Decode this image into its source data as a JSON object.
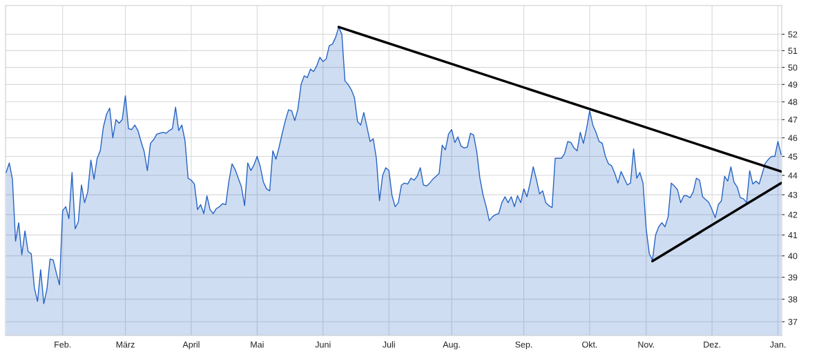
{
  "chart_data": {
    "type": "area",
    "log": "y",
    "grid": true,
    "ylim": [
      36.4,
      53.8
    ],
    "yticks": [
      37,
      38,
      39,
      40,
      41,
      42,
      43,
      44,
      45,
      46,
      47,
      48,
      49,
      50,
      51,
      52
    ],
    "categories": [
      null,
      null,
      null,
      null,
      null,
      null,
      null,
      null,
      null,
      null,
      null,
      null,
      null,
      null,
      null,
      null,
      null,
      null,
      "Feb.",
      null,
      null,
      null,
      null,
      null,
      null,
      null,
      null,
      null,
      null,
      null,
      null,
      null,
      null,
      null,
      null,
      null,
      null,
      null,
      "März",
      null,
      null,
      null,
      null,
      null,
      null,
      null,
      null,
      null,
      null,
      null,
      null,
      null,
      null,
      null,
      null,
      null,
      null,
      null,
      null,
      "April",
      null,
      null,
      null,
      null,
      null,
      null,
      null,
      null,
      null,
      null,
      null,
      null,
      null,
      null,
      null,
      null,
      null,
      null,
      null,
      null,
      "Mai",
      null,
      null,
      null,
      null,
      null,
      null,
      null,
      null,
      null,
      null,
      null,
      null,
      null,
      null,
      null,
      null,
      null,
      null,
      null,
      null,
      "Juni",
      null,
      null,
      null,
      null,
      null,
      null,
      null,
      null,
      null,
      null,
      null,
      null,
      null,
      null,
      null,
      null,
      null,
      null,
      null,
      null,
      "Juli",
      null,
      null,
      null,
      null,
      null,
      null,
      null,
      null,
      null,
      null,
      null,
      null,
      null,
      null,
      null,
      null,
      null,
      null,
      null,
      "Aug.",
      null,
      null,
      null,
      null,
      null,
      null,
      null,
      null,
      null,
      null,
      null,
      null,
      null,
      null,
      null,
      null,
      null,
      null,
      null,
      null,
      null,
      null,
      "Sep.",
      null,
      null,
      null,
      null,
      null,
      null,
      null,
      null,
      null,
      null,
      null,
      null,
      null,
      null,
      null,
      null,
      null,
      null,
      null,
      null,
      "Okt.",
      null,
      null,
      null,
      null,
      null,
      null,
      null,
      null,
      null,
      null,
      null,
      null,
      null,
      null,
      null,
      null,
      null,
      "Nov.",
      null,
      null,
      null,
      null,
      null,
      null,
      null,
      null,
      null,
      null,
      null,
      null,
      null,
      null,
      null,
      null,
      null,
      null,
      null,
      null,
      "Dez.",
      null,
      null,
      null,
      null,
      null,
      null,
      null,
      null,
      null,
      null,
      null,
      null,
      null,
      null,
      null,
      null,
      null,
      null,
      null,
      null,
      "Jan.",
      null
    ],
    "series": [
      {
        "color": "#2563c4",
        "values": [
          44.15,
          44.65,
          43.8,
          40.7,
          41.6,
          40.05,
          41.2,
          40.2,
          40.1,
          38.5,
          37.9,
          39.35,
          37.8,
          38.45,
          39.85,
          39.8,
          39.2,
          38.65,
          42.2,
          42.4,
          41.8,
          44.15,
          41.3,
          41.65,
          43.5,
          42.6,
          43.15,
          44.8,
          43.8,
          44.9,
          45.3,
          46.6,
          47.3,
          47.65,
          46.0,
          47.0,
          46.8,
          47.0,
          48.35,
          46.5,
          46.45,
          46.7,
          46.4,
          45.8,
          45.25,
          44.25,
          45.7,
          45.9,
          46.2,
          46.25,
          46.3,
          46.25,
          46.4,
          46.5,
          47.7,
          46.4,
          46.7,
          45.85,
          43.85,
          43.75,
          43.55,
          42.25,
          42.5,
          42.05,
          42.95,
          42.25,
          42.05,
          42.3,
          42.4,
          42.55,
          42.5,
          43.7,
          44.6,
          44.3,
          43.85,
          43.4,
          42.45,
          44.65,
          44.25,
          44.55,
          45.0,
          44.45,
          43.65,
          43.3,
          43.2,
          45.3,
          44.85,
          45.5,
          46.25,
          46.95,
          47.55,
          47.5,
          46.95,
          47.6,
          49.0,
          49.5,
          49.4,
          49.9,
          49.75,
          50.1,
          50.6,
          50.35,
          50.5,
          51.3,
          51.4,
          51.8,
          52.45,
          52.0,
          49.2,
          49.0,
          48.7,
          48.25,
          46.9,
          46.7,
          47.4,
          46.6,
          45.8,
          45.95,
          44.9,
          42.7,
          44.0,
          44.4,
          44.25,
          42.95,
          42.4,
          42.6,
          43.5,
          43.6,
          43.55,
          43.85,
          43.75,
          43.95,
          44.4,
          43.5,
          43.45,
          43.6,
          43.8,
          43.95,
          44.1,
          45.6,
          45.35,
          46.2,
          46.45,
          45.75,
          46.05,
          45.55,
          45.45,
          45.5,
          46.25,
          46.15,
          45.25,
          43.85,
          43.0,
          42.4,
          41.7,
          41.9,
          42.0,
          42.05,
          42.6,
          42.9,
          42.6,
          42.9,
          42.4,
          42.95,
          42.6,
          43.3,
          42.9,
          43.6,
          44.45,
          43.8,
          43.05,
          43.2,
          42.6,
          42.45,
          42.35,
          44.9,
          44.9,
          44.9,
          45.15,
          45.8,
          45.75,
          45.45,
          45.3,
          46.3,
          45.7,
          46.5,
          47.5,
          46.7,
          46.3,
          45.8,
          45.7,
          45.0,
          44.6,
          44.5,
          44.1,
          43.6,
          44.2,
          43.85,
          43.5,
          43.6,
          45.4,
          43.85,
          44.15,
          43.6,
          41.3,
          40.1,
          39.8,
          41.0,
          41.4,
          41.6,
          41.4,
          41.9,
          43.6,
          43.45,
          43.25,
          42.6,
          42.95,
          42.95,
          42.85,
          43.15,
          43.85,
          43.75,
          42.9,
          42.75,
          42.6,
          42.25,
          41.85,
          42.5,
          42.7,
          43.95,
          43.7,
          44.45,
          43.65,
          43.4,
          42.85,
          42.8,
          42.6,
          44.25,
          43.55,
          43.7,
          43.55,
          44.1,
          44.65,
          44.85,
          45.0,
          45.0,
          45.8,
          45.1
        ]
      },
      {
        "type": "line",
        "color": "#000000",
        "values": [
          null,
          null,
          null,
          null,
          null,
          null,
          null,
          null,
          null,
          null,
          null,
          null,
          null,
          null,
          null,
          null,
          null,
          null,
          null,
          null,
          null,
          null,
          null,
          null,
          null,
          null,
          null,
          null,
          null,
          null,
          null,
          null,
          null,
          null,
          null,
          null,
          null,
          null,
          null,
          null,
          null,
          null,
          null,
          null,
          null,
          null,
          null,
          null,
          null,
          null,
          null,
          null,
          null,
          null,
          null,
          null,
          null,
          null,
          null,
          null,
          null,
          null,
          null,
          null,
          null,
          null,
          null,
          null,
          null,
          null,
          null,
          null,
          null,
          null,
          null,
          null,
          null,
          null,
          null,
          null,
          null,
          null,
          null,
          null,
          null,
          null,
          null,
          null,
          null,
          null,
          null,
          null,
          null,
          null,
          null,
          null,
          null,
          null,
          null,
          null,
          null,
          null,
          null,
          null,
          null,
          null,
          52.45,
          null,
          null,
          null,
          null,
          null,
          null,
          null,
          null,
          null,
          null,
          null,
          null,
          null,
          null,
          null,
          null,
          null,
          null,
          null,
          null,
          null,
          null,
          null,
          null,
          null,
          null,
          null,
          null,
          null,
          null,
          null,
          null,
          null,
          null,
          null,
          null,
          null,
          null,
          null,
          null,
          null,
          null,
          null,
          null,
          null,
          null,
          null,
          null,
          null,
          null,
          null,
          null,
          null,
          null,
          null,
          null,
          null,
          null,
          null,
          null,
          null,
          null,
          null,
          null,
          null,
          null,
          null,
          null,
          null,
          null,
          null,
          null,
          null,
          null,
          null,
          null,
          null,
          null,
          null,
          null,
          null,
          null,
          null,
          null,
          null,
          null,
          null,
          null,
          null,
          null,
          null,
          null,
          null,
          null,
          null,
          null,
          null,
          null,
          null,
          null,
          null,
          null,
          null,
          null,
          null,
          null,
          null,
          null,
          null,
          null,
          null,
          null,
          null,
          null,
          null,
          null,
          null,
          null,
          null,
          null,
          null,
          null,
          null,
          null,
          null,
          null,
          null,
          null,
          null,
          null,
          null,
          null,
          null,
          null,
          null,
          null,
          null,
          null,
          null,
          null,
          44.2
        ]
      },
      {
        "type": "line",
        "color": "#000000",
        "values": [
          null,
          null,
          null,
          null,
          null,
          null,
          null,
          null,
          null,
          null,
          null,
          null,
          null,
          null,
          null,
          null,
          null,
          null,
          null,
          null,
          null,
          null,
          null,
          null,
          null,
          null,
          null,
          null,
          null,
          null,
          null,
          null,
          null,
          null,
          null,
          null,
          null,
          null,
          null,
          null,
          null,
          null,
          null,
          null,
          null,
          null,
          null,
          null,
          null,
          null,
          null,
          null,
          null,
          null,
          null,
          null,
          null,
          null,
          null,
          null,
          null,
          null,
          null,
          null,
          null,
          null,
          null,
          null,
          null,
          null,
          null,
          null,
          null,
          null,
          null,
          null,
          null,
          null,
          null,
          null,
          null,
          null,
          null,
          null,
          null,
          null,
          null,
          null,
          null,
          null,
          null,
          null,
          null,
          null,
          null,
          null,
          null,
          null,
          null,
          null,
          null,
          null,
          null,
          null,
          null,
          null,
          null,
          null,
          null,
          null,
          null,
          null,
          null,
          null,
          null,
          null,
          null,
          null,
          null,
          null,
          null,
          null,
          null,
          null,
          null,
          null,
          null,
          null,
          null,
          null,
          null,
          null,
          null,
          null,
          null,
          null,
          null,
          null,
          null,
          null,
          null,
          null,
          null,
          null,
          null,
          null,
          null,
          null,
          null,
          null,
          null,
          null,
          null,
          null,
          null,
          null,
          null,
          null,
          null,
          null,
          null,
          null,
          null,
          null,
          null,
          null,
          null,
          null,
          null,
          null,
          null,
          null,
          null,
          null,
          null,
          null,
          null,
          null,
          null,
          null,
          null,
          null,
          null,
          null,
          null,
          null,
          null,
          null,
          null,
          null,
          null,
          null,
          null,
          null,
          null,
          null,
          null,
          null,
          null,
          null,
          null,
          null,
          null,
          null,
          null,
          null,
          39.75,
          null,
          null,
          null,
          null,
          null,
          null,
          null,
          null,
          null,
          null,
          null,
          null,
          null,
          null,
          null,
          null,
          null,
          null,
          null,
          null,
          null,
          null,
          null,
          null,
          null,
          null,
          null,
          null,
          null,
          null,
          null,
          null,
          null,
          null,
          null,
          null,
          null,
          null,
          null,
          null,
          43.6
        ]
      }
    ]
  }
}
